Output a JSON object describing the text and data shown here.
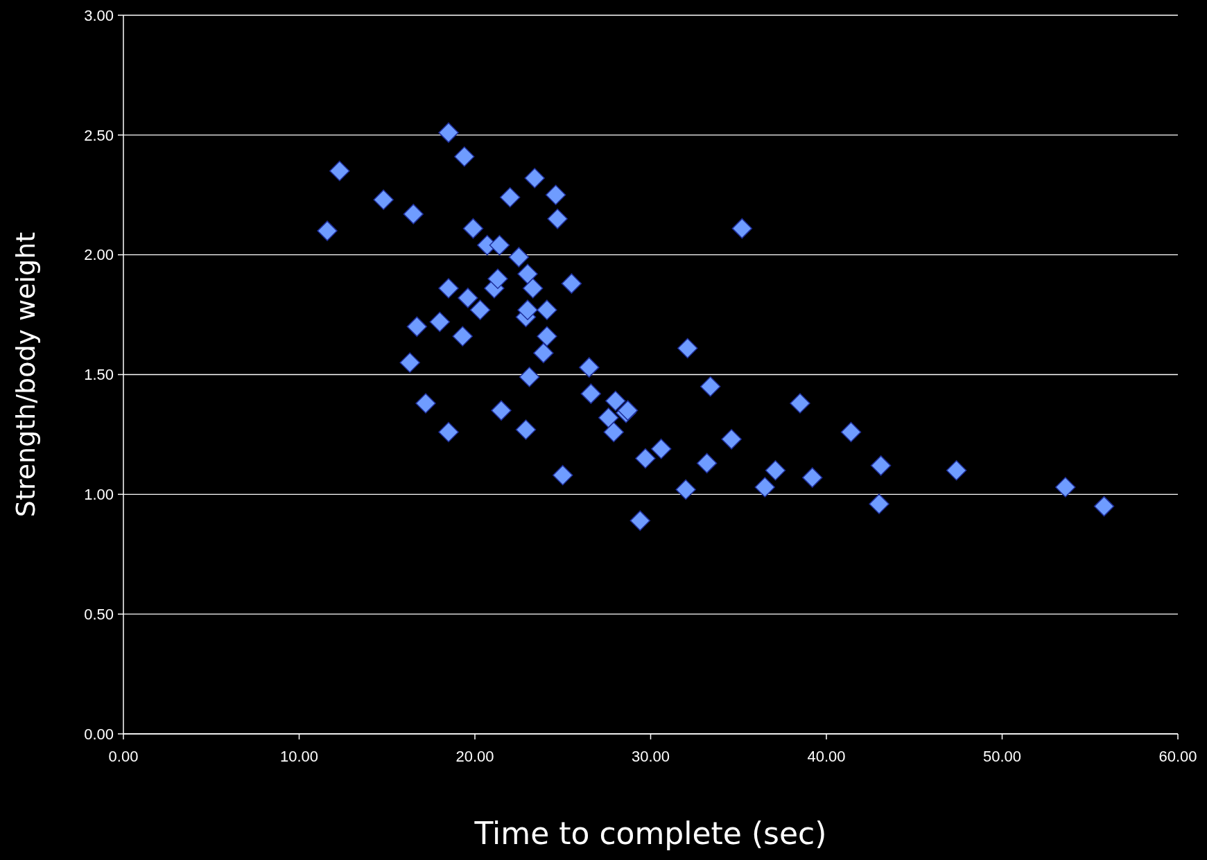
{
  "chart_data": {
    "type": "scatter",
    "xlabel": "Time to complete (sec)",
    "ylabel": "Strength/body weight",
    "marker": "diamond",
    "grid": "y",
    "xlim": [
      0,
      60
    ],
    "ylim": [
      0,
      3
    ],
    "xticks": [
      {
        "value": 0,
        "label": "0.00"
      },
      {
        "value": 10,
        "label": "10.00"
      },
      {
        "value": 20,
        "label": "20.00"
      },
      {
        "value": 30,
        "label": "30.00"
      },
      {
        "value": 40,
        "label": "40.00"
      },
      {
        "value": 50,
        "label": "50.00"
      },
      {
        "value": 60,
        "label": "60.00"
      }
    ],
    "yticks": [
      {
        "value": 0,
        "label": "0.00"
      },
      {
        "value": 0.5,
        "label": "0.50"
      },
      {
        "value": 1,
        "label": "1.00"
      },
      {
        "value": 1.5,
        "label": "1.50"
      },
      {
        "value": 2,
        "label": "2.00"
      },
      {
        "value": 2.5,
        "label": "2.50"
      },
      {
        "value": 3,
        "label": "3.00"
      }
    ],
    "series": [
      {
        "color": "#6f9cff",
        "x": [
          11.6,
          12.3,
          14.8,
          16.5,
          16.3,
          16.7,
          17.2,
          18.0,
          18.5,
          18.5,
          18.5,
          19.4,
          19.3,
          19.6,
          19.9,
          20.3,
          20.7,
          21.1,
          21.3,
          21.4,
          21.5,
          22.0,
          22.5,
          22.9,
          23.0,
          22.9,
          23.0,
          23.1,
          23.3,
          23.4,
          23.9,
          24.1,
          24.1,
          24.6,
          24.7,
          25.0,
          25.5,
          26.5,
          26.6,
          27.6,
          27.9,
          28.0,
          28.6,
          28.7,
          29.4,
          29.7,
          30.6,
          32.1,
          32.0,
          33.2,
          33.4,
          34.6,
          35.2,
          36.5,
          37.1,
          38.5,
          39.2,
          41.4,
          43.1,
          43.0,
          47.4,
          53.6,
          55.8
        ],
        "values": [
          2.1,
          2.35,
          2.23,
          2.17,
          1.55,
          1.7,
          1.38,
          1.72,
          2.51,
          1.86,
          1.26,
          2.41,
          1.66,
          1.82,
          2.11,
          1.77,
          2.04,
          1.86,
          1.9,
          2.04,
          1.35,
          2.24,
          1.99,
          1.27,
          1.92,
          1.74,
          1.77,
          1.49,
          1.86,
          2.32,
          1.59,
          1.77,
          1.66,
          2.25,
          2.15,
          1.08,
          1.88,
          1.53,
          1.42,
          1.32,
          1.26,
          1.39,
          1.34,
          1.35,
          0.89,
          1.15,
          1.19,
          1.61,
          1.02,
          1.13,
          1.45,
          1.23,
          2.11,
          1.03,
          1.1,
          1.38,
          1.07,
          1.26,
          1.12,
          0.96,
          1.1,
          1.03,
          0.95
        ]
      }
    ]
  }
}
